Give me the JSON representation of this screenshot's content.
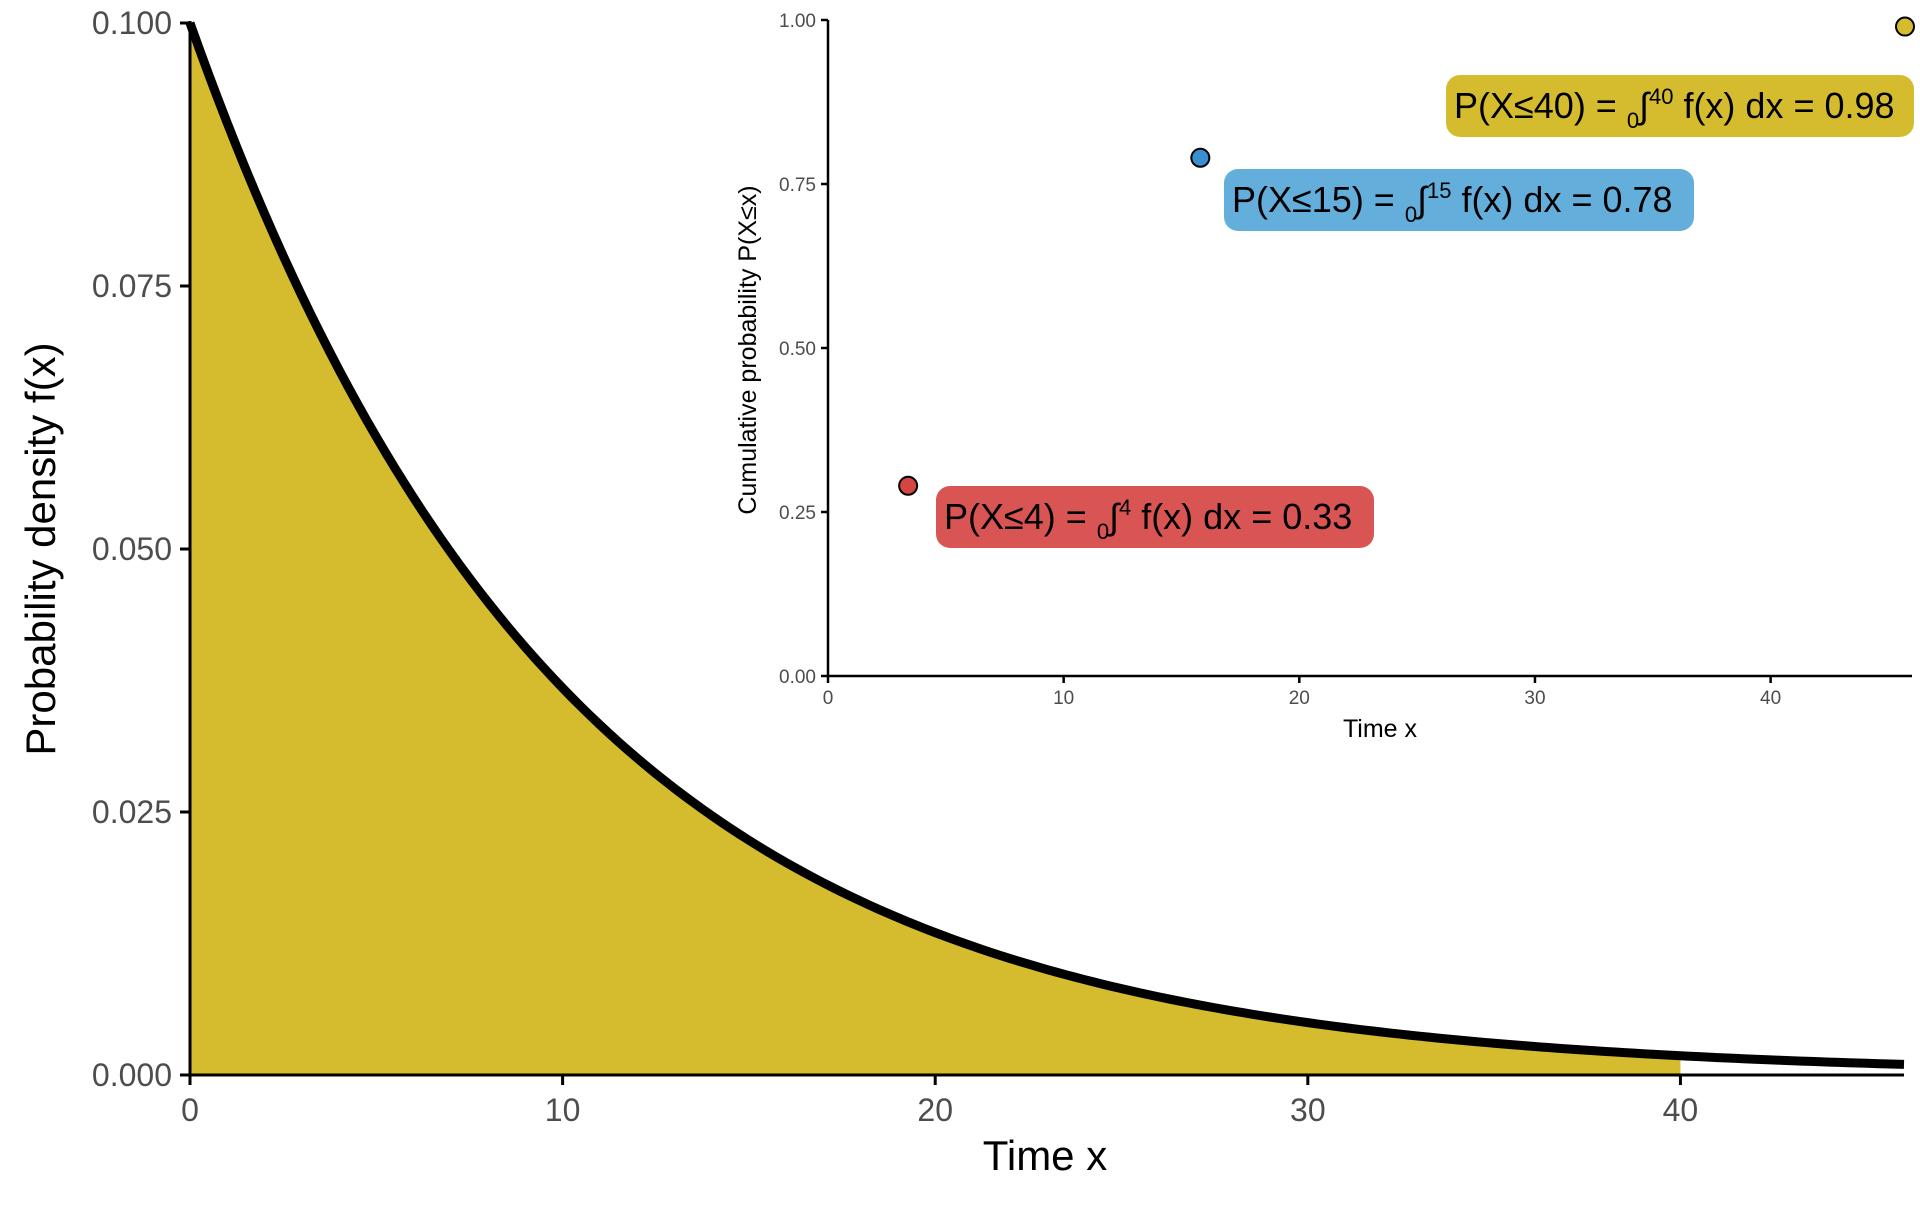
{
  "chart_data": [
    {
      "type": "area",
      "title": "",
      "xlabel": "Time x",
      "ylabel": "Probability density f(x)",
      "xlim": [
        0,
        46
      ],
      "ylim": [
        0,
        0.1
      ],
      "xticks": [
        "0",
        "10",
        "20",
        "30",
        "40"
      ],
      "yticks": [
        "0.000",
        "0.025",
        "0.050",
        "0.075",
        "0.100"
      ],
      "grid": false,
      "curve": {
        "rate": 0.1,
        "x": [
          0,
          2,
          4,
          6,
          8,
          10,
          12,
          14,
          16,
          18,
          20,
          22,
          24,
          26,
          28,
          30,
          32,
          34,
          36,
          38,
          40,
          42,
          44,
          46
        ],
        "y": [
          0.1,
          0.0819,
          0.067,
          0.0549,
          0.0449,
          0.0368,
          0.0301,
          0.0247,
          0.0202,
          0.0165,
          0.0135,
          0.0111,
          0.0091,
          0.0074,
          0.0061,
          0.005,
          0.0041,
          0.0033,
          0.0027,
          0.0022,
          0.0018,
          0.0015,
          0.0012,
          0.001
        ]
      },
      "shaded_to_x": 40,
      "fill_color": "#d4bc2e",
      "line_color": "#000000"
    },
    {
      "type": "scatter",
      "title": "",
      "xlabel": "Time x",
      "ylabel": "Cumulative probability P(X≤x)",
      "xlim": [
        0,
        46
      ],
      "ylim": [
        0,
        1
      ],
      "xticks": [
        "0",
        "10",
        "20",
        "30",
        "40"
      ],
      "yticks": [
        "0.00",
        "0.25",
        "0.50",
        "0.75",
        "1.00"
      ],
      "grid": false,
      "points": [
        {
          "x": 3.4,
          "y": 0.29,
          "color": "#d64541",
          "label": {
            "prefix": "P(X≤4) = ",
            "sub": "0",
            "integral": "∫",
            "sup": "4",
            "suffix": " f(x) dx = 0.33"
          }
        },
        {
          "x": 15.8,
          "y": 0.79,
          "color": "#3a8fd0",
          "label": {
            "prefix": "P(X≤15) = ",
            "sub": "0",
            "integral": "∫",
            "sup": "15",
            "suffix": " f(x) dx = 0.78"
          }
        },
        {
          "x": 46,
          "y": 0.99,
          "color": "#d4bc2e",
          "label": {
            "prefix": "P(X≤40) = ",
            "sub": "0",
            "integral": "∫",
            "sup": "40",
            "suffix": " f(x) dx = 0.98"
          }
        }
      ],
      "label_colors": [
        "#d95554",
        "#63aedb",
        "#d4bc2e"
      ]
    }
  ]
}
